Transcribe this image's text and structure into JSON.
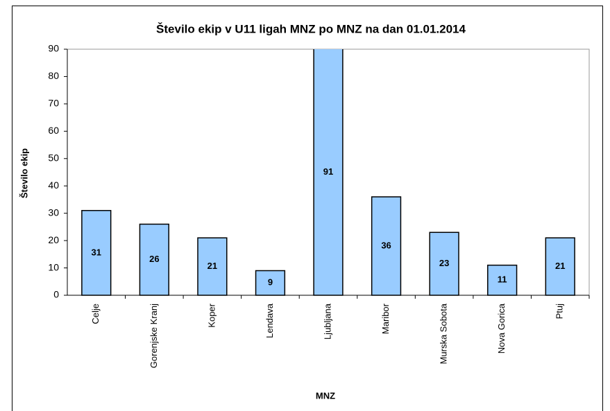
{
  "chart_data": {
    "type": "bar",
    "title": "Število ekip v U11 ligah MNZ po MNZ na dan 01.01.2014",
    "x_label": "MNZ",
    "y_label": "Število ekip",
    "categories": [
      "Celje",
      "Gorenjske Kranj",
      "Koper",
      "Lendava",
      "Ljubljana",
      "Maribor",
      "Murska Sobota",
      "Nova Gorica",
      "Ptuj"
    ],
    "values": [
      31,
      26,
      21,
      9,
      91,
      36,
      23,
      11,
      21
    ],
    "color": "#99ccff",
    "ylim": [
      0,
      90
    ],
    "yticks": [
      0,
      10,
      20,
      30,
      40,
      50,
      60,
      70,
      80,
      90
    ],
    "grid": false
  }
}
